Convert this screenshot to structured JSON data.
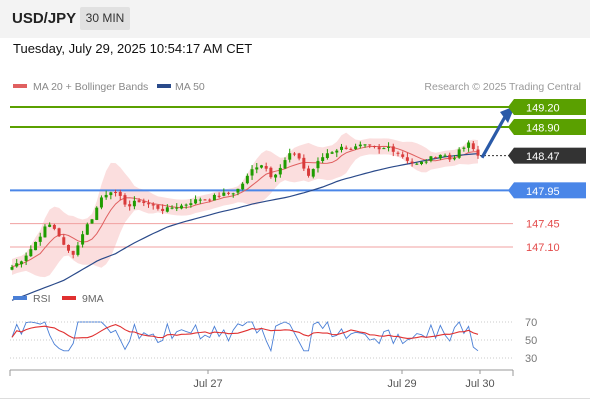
{
  "header": {
    "symbol": "USD/JPY",
    "timeframe": "30 MIN",
    "datetime": "Tuesday, July 29, 2025 10:54:17 AM CET"
  },
  "legend": {
    "ma20_label": "MA 20 + Bollinger Bands",
    "ma50_label": "MA 50",
    "credit": "Research © 2025 Trading Central"
  },
  "rsi_legend": {
    "rsi_label": "RSI",
    "ma_label": "9MA"
  },
  "colors": {
    "resistance": "#5aa000",
    "support": "#4a86e8",
    "level_red": "#e34a4a",
    "price_badge": "#333333",
    "arrow": "#2a5aa8",
    "candle_up": "#1f9c00",
    "candle_down": "#d93b3b",
    "ma20": "#e06060",
    "ma50": "#2a4a8a",
    "bands": "#fad3d3",
    "rsi": "#4a7fd6",
    "rsi_ma": "#e03030"
  },
  "chart_data": {
    "type": "candlestick",
    "ylim": [
      146.5,
      149.32
    ],
    "x_ticks": [
      "Jul 27",
      "Jul 29",
      "Jul 30"
    ],
    "levels": [
      {
        "label": "149.20",
        "value": 149.2,
        "kind": "resistance"
      },
      {
        "label": "148.90",
        "value": 148.9,
        "kind": "resistance"
      },
      {
        "label": "148.47",
        "value": 148.47,
        "kind": "price"
      },
      {
        "label": "147.95",
        "value": 147.95,
        "kind": "support"
      },
      {
        "label": "147.45",
        "value": 147.45,
        "kind": "minor"
      },
      {
        "label": "147.10",
        "value": 147.1,
        "kind": "minor"
      }
    ],
    "close_path": [
      146.8,
      146.9,
      147.05,
      147.25,
      147.45,
      147.35,
      147.05,
      147.0,
      147.35,
      147.55,
      147.85,
      147.95,
      147.85,
      147.7,
      147.8,
      147.75,
      147.7,
      147.65,
      147.7,
      147.72,
      147.78,
      147.82,
      147.82,
      147.88,
      147.9,
      147.93,
      148.1,
      148.3,
      148.35,
      148.15,
      148.3,
      148.5,
      148.45,
      148.15,
      148.35,
      148.5,
      148.55,
      148.6,
      148.58,
      148.62,
      148.6,
      148.55,
      148.6,
      148.52,
      148.42,
      148.33,
      148.38,
      148.45,
      148.5,
      148.4,
      148.55,
      148.65,
      148.47
    ],
    "ma50_path": [
      146.3,
      146.4,
      146.5,
      146.6,
      146.75,
      146.9,
      147.0,
      147.15,
      147.28,
      147.4,
      147.48,
      147.55,
      147.62,
      147.68,
      147.75,
      147.8,
      147.85,
      147.92,
      148.0,
      148.1,
      148.17,
      148.24,
      148.3,
      148.35,
      148.4,
      148.45,
      148.48,
      148.5
    ],
    "rsi_axis": [
      70,
      50,
      30
    ]
  }
}
